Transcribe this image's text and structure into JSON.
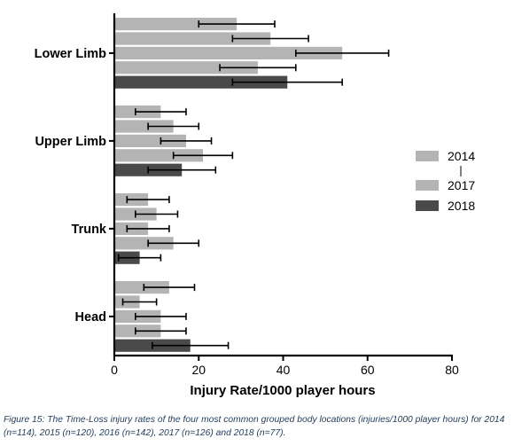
{
  "chart_data": {
    "type": "bar",
    "orientation": "horizontal",
    "categories": [
      "Lower Limb",
      "Upper Limb",
      "Trunk",
      "Head"
    ],
    "series": [
      {
        "name": "2014",
        "color": "#b4b4b4",
        "values": [
          29,
          11,
          8,
          13
        ],
        "errors": [
          9,
          6,
          5,
          6
        ]
      },
      {
        "name": "",
        "color": "#b4b4b4",
        "values": [
          37,
          14,
          10,
          6
        ],
        "errors": [
          9,
          6,
          5,
          4
        ]
      },
      {
        "name": "",
        "color": "#b4b4b4",
        "values": [
          54,
          17,
          8,
          11
        ],
        "errors": [
          11,
          6,
          5,
          6
        ]
      },
      {
        "name": "2017",
        "color": "#b4b4b4",
        "values": [
          34,
          21,
          14,
          11
        ],
        "errors": [
          9,
          7,
          6,
          6
        ]
      },
      {
        "name": "2018",
        "color": "#4a4a4a",
        "values": [
          41,
          16,
          6,
          18
        ],
        "errors": [
          13,
          8,
          5,
          9
        ]
      }
    ],
    "xlabel": "Injury Rate/1000 player hours",
    "ylabel": "",
    "xlim": [
      0,
      80
    ],
    "xticks": [
      "0",
      "20",
      "40",
      "60",
      "80"
    ],
    "grid": false,
    "legend_position": "right"
  },
  "legend_labels": [
    "2014",
    "2017",
    "2018"
  ],
  "caption": "Figure 15: The Time-Loss injury rates of the four most common grouped body locations (injuries/1000 player hours) for 2014 (n=114), 2015 (n=120), 2016 (n=142), 2017 (n=126) and 2018 (n=77)."
}
